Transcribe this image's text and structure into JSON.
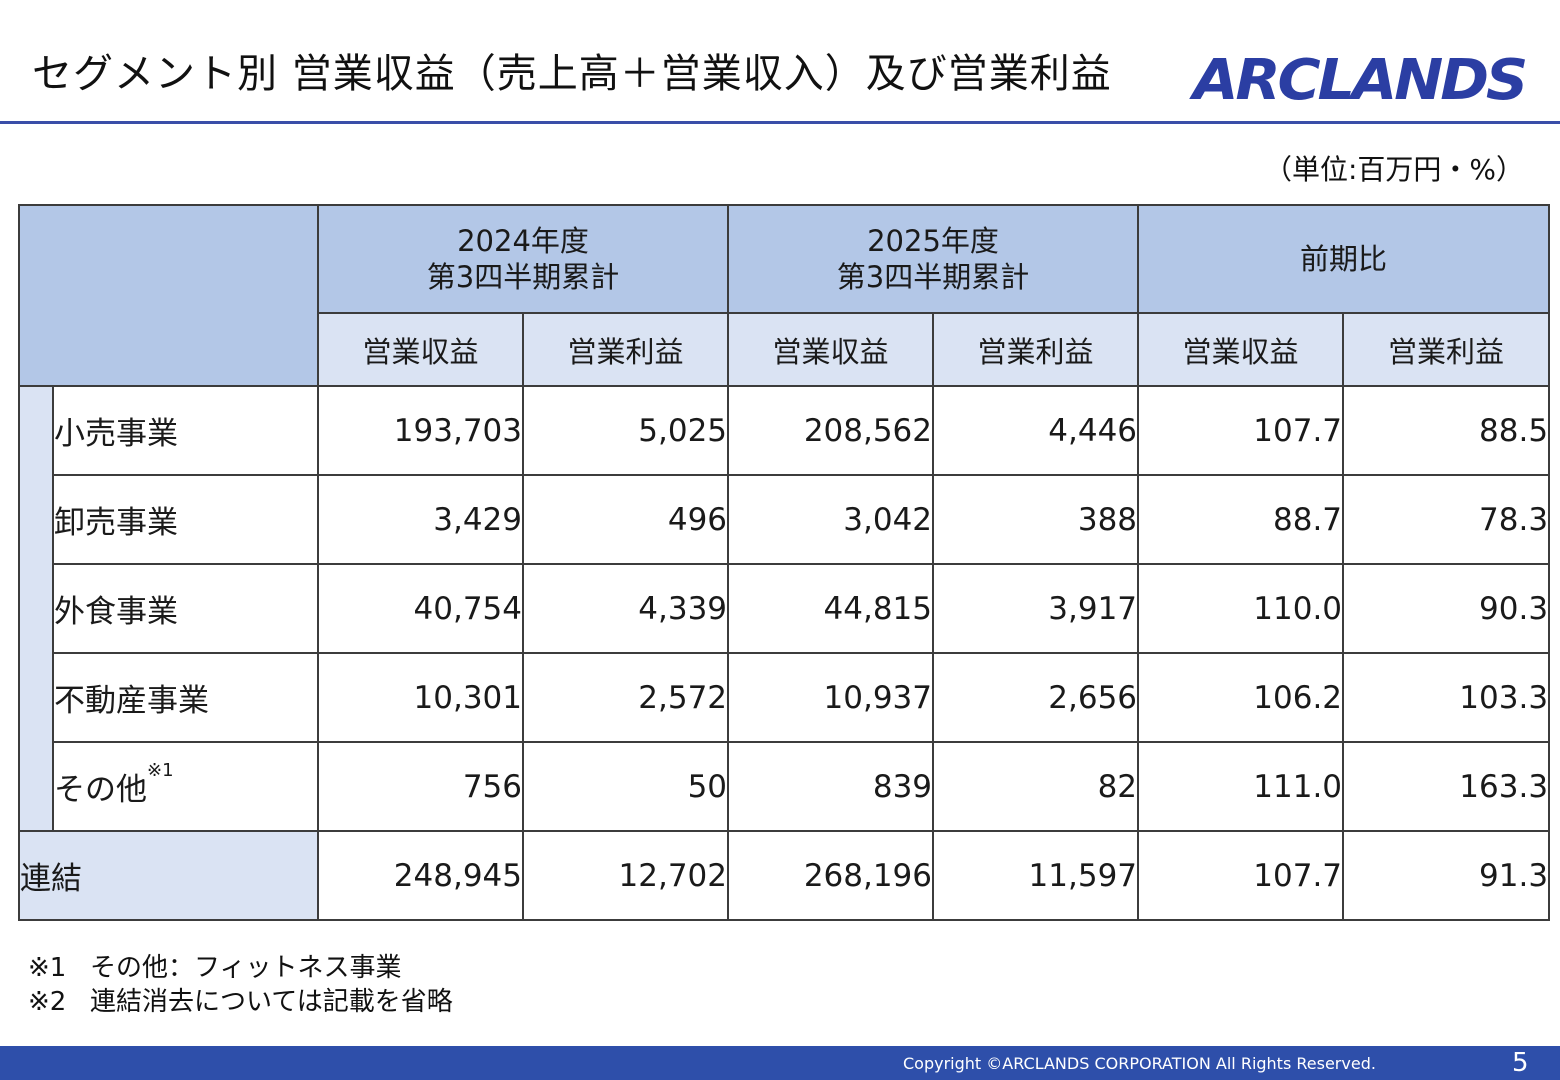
{
  "header": {
    "title": "セグメント別 営業収益（売上高＋営業収入）及び営業利益",
    "logo_text": "ARCLANDS",
    "unit_note": "（単位:百万円・%）"
  },
  "table": {
    "periods": [
      {
        "line1": "2024年度",
        "line2": "第3四半期累計"
      },
      {
        "line1": "2025年度",
        "line2": "第3四半期累計"
      },
      {
        "line1": "前期比",
        "line2": ""
      }
    ],
    "subheaders": [
      "営業収益",
      "営業利益",
      "営業収益",
      "営業利益",
      "営業収益",
      "営業利益"
    ],
    "rows": [
      {
        "label": "小売事業",
        "sup": "",
        "values": [
          "193,703",
          "5,025",
          "208,562",
          "4,446",
          "107.7",
          "88.5"
        ]
      },
      {
        "label": "卸売事業",
        "sup": "",
        "values": [
          "3,429",
          "496",
          "3,042",
          "388",
          "88.7",
          "78.3"
        ]
      },
      {
        "label": "外食事業",
        "sup": "",
        "values": [
          "40,754",
          "4,339",
          "44,815",
          "3,917",
          "110.0",
          "90.3"
        ]
      },
      {
        "label": "不動産事業",
        "sup": "",
        "values": [
          "10,301",
          "2,572",
          "10,937",
          "2,656",
          "106.2",
          "103.3"
        ]
      },
      {
        "label": "その他",
        "sup": "※1",
        "values": [
          "756",
          "50",
          "839",
          "82",
          "111.0",
          "163.3"
        ]
      }
    ],
    "total": {
      "label": "連結",
      "values": [
        "248,945",
        "12,702",
        "268,196",
        "11,597",
        "107.7",
        "91.3"
      ]
    }
  },
  "notes": [
    {
      "mark": "※1",
      "text": "その他：フィットネス事業"
    },
    {
      "mark": "※2",
      "text": "連結消去については記載を省略"
    }
  ],
  "footer": {
    "copyright": "Copyright ©ARCLANDS CORPORATION All Rights Reserved.",
    "page": "5"
  },
  "colors": {
    "header_dark": "#b3c7e7",
    "header_light": "#dae3f3",
    "brand_blue": "#2b3ea3",
    "footer_bar": "#2e4faa"
  }
}
